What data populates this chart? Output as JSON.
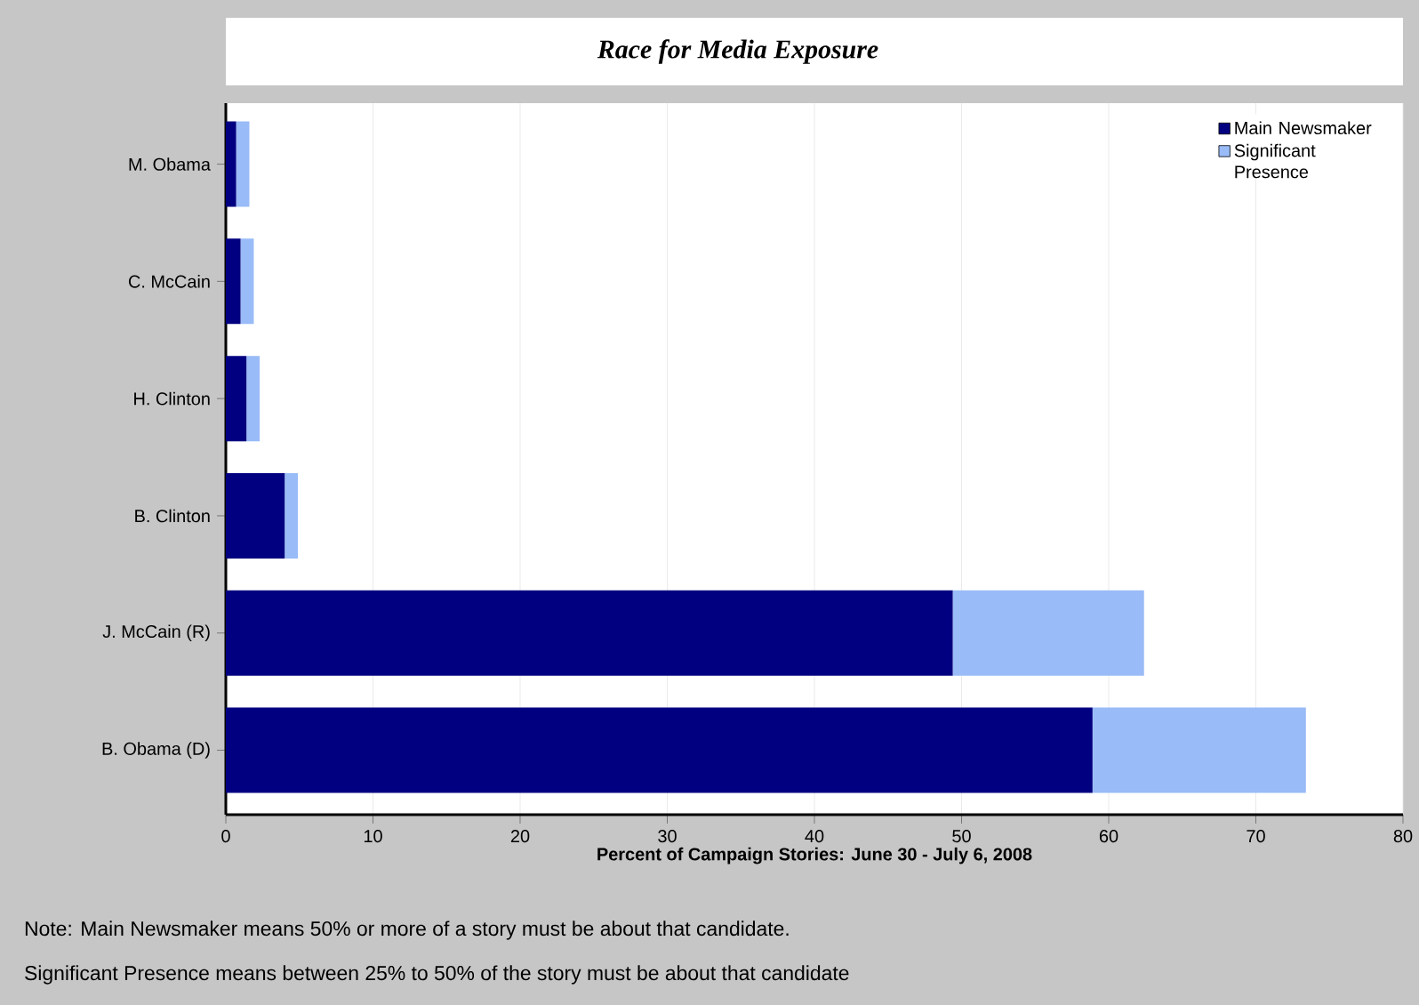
{
  "chart_data": {
    "type": "bar",
    "orientation": "horizontal",
    "stacked": true,
    "title": "Race for Media Exposure",
    "xlabel": "Percent of Campaign Stories: June 30 - July 6, 2008",
    "categories": [
      "M. Obama",
      "C. McCain",
      "H. Clinton",
      "B. Clinton",
      "J. McCain (R)",
      "B. Obama (D)"
    ],
    "series": [
      {
        "name": "Main Newsmaker",
        "color": "#000080",
        "values": [
          0.7,
          1.0,
          1.4,
          4.0,
          49.4,
          58.9
        ]
      },
      {
        "name": "Significant Presence",
        "color": "#99bbf7",
        "values": [
          0.9,
          0.9,
          0.9,
          0.9,
          13.0,
          14.5
        ]
      }
    ],
    "xlim": [
      0,
      80
    ],
    "xticks": [
      0,
      10,
      20,
      30,
      40,
      50,
      60,
      70,
      80
    ],
    "grid": "x",
    "legend": "top right",
    "annotations": [
      "Note: Main Newsmaker means 50% or more of a story must be about that candidate.",
      "Significant Presence means between 25% to 50% of the story must be about that candidate"
    ]
  }
}
